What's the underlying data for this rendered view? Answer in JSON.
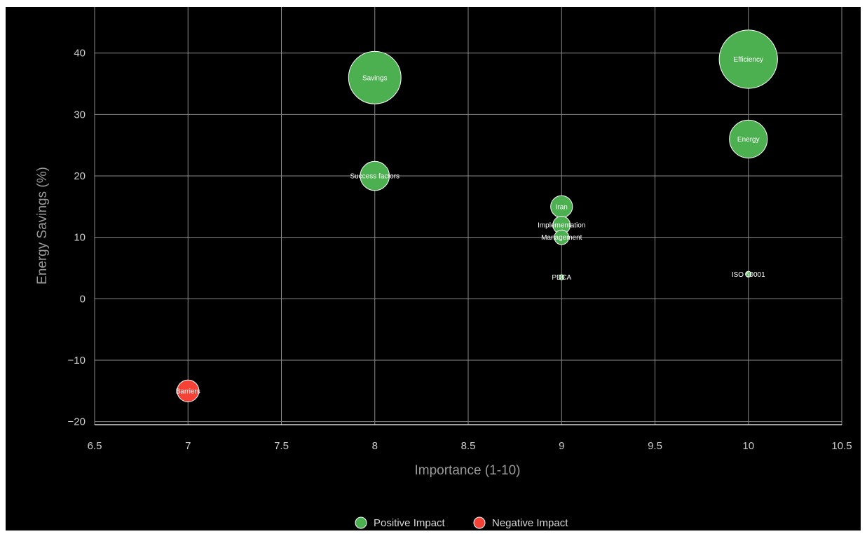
{
  "chart_data": {
    "type": "scatter",
    "subtype": "bubble",
    "title": "",
    "xlabel": "Importance (1-10)",
    "ylabel": "Energy Savings (%)",
    "xlim": [
      6.5,
      10.5
    ],
    "ylim": [
      -20.5,
      47.5
    ],
    "xticks": [
      6.5,
      7,
      7.5,
      8,
      8.5,
      9,
      9.5,
      10,
      10.5
    ],
    "xtick_labels": [
      "6.5",
      "7",
      "7.5",
      "8",
      "8.5",
      "9",
      "9.5",
      "10",
      "10.5"
    ],
    "yticks": [
      -20,
      -10,
      0,
      10,
      20,
      30,
      40
    ],
    "ytick_labels": [
      "−20",
      "−10",
      "0",
      "10",
      "20",
      "30",
      "40"
    ],
    "grid": true,
    "background": "#000000",
    "legend_position": "bottom-center",
    "series": [
      {
        "name": "Positive Impact",
        "color": "#4caf50",
        "points": [
          {
            "label": "Efficiency",
            "x": 10,
            "y": 39,
            "size": 40
          },
          {
            "label": "Savings",
            "x": 8,
            "y": 36,
            "size": 36
          },
          {
            "label": "Energy",
            "x": 10,
            "y": 26,
            "size": 26
          },
          {
            "label": "Success factors",
            "x": 8,
            "y": 20,
            "size": 20
          },
          {
            "label": "Iran",
            "x": 9,
            "y": 15,
            "size": 15
          },
          {
            "label": "Implementation",
            "x": 9,
            "y": 12,
            "size": 12
          },
          {
            "label": "Management",
            "x": 9,
            "y": 10,
            "size": 10
          },
          {
            "label": "ISO 50001",
            "x": 10,
            "y": 4,
            "size": 4
          },
          {
            "label": "PDCA",
            "x": 9,
            "y": 3.5,
            "size": 3.5
          }
        ]
      },
      {
        "name": "Negative Impact",
        "color": "#f44336",
        "points": [
          {
            "label": "Barriers",
            "x": 7,
            "y": -15,
            "size": 15
          }
        ]
      }
    ]
  }
}
